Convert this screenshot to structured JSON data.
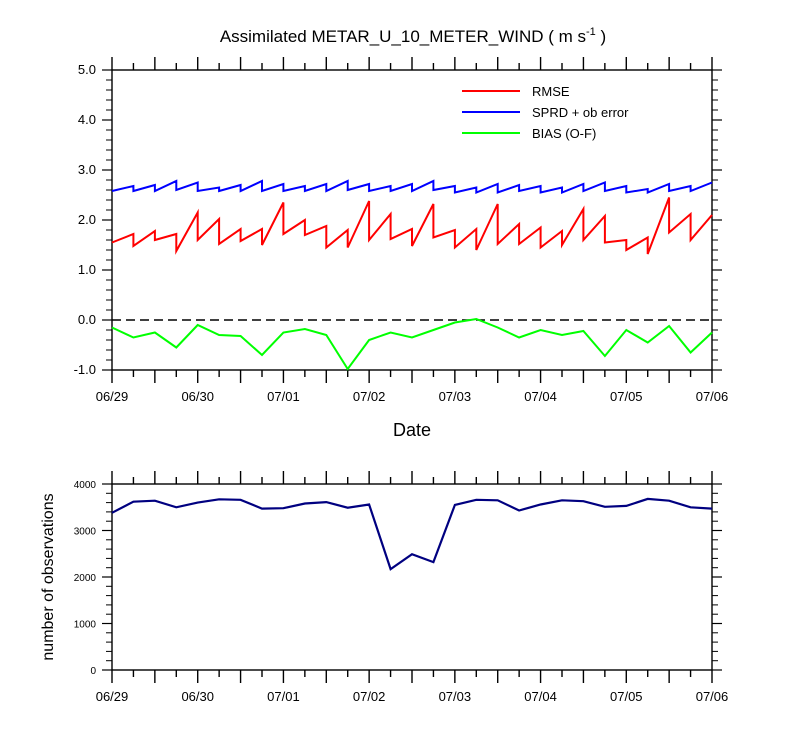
{
  "chart_data": [
    {
      "type": "line",
      "title": "Assimilated METAR_U_10_METER_WIND ( m s",
      "title_unit_exponent": "-1",
      "title_close": " )",
      "xlabel": "Date",
      "ylabel": "",
      "xlim": [
        "2012-06-29T00:00",
        "2012-07-06T00:00"
      ],
      "ylim": [
        -1.0,
        5.0
      ],
      "x_ticks": [
        "06/29",
        "06/30",
        "07/01",
        "07/02",
        "07/03",
        "07/04",
        "07/05",
        "07/06"
      ],
      "y_ticks": [
        "-1.0",
        "0.0",
        "1.0",
        "2.0",
        "3.0",
        "4.0",
        "5.0"
      ],
      "y_tick_values": [
        -1,
        0,
        1,
        2,
        3,
        4,
        5
      ],
      "zero_reference_line": true,
      "legend_position": "top-right",
      "grid": false,
      "series": [
        {
          "name": "RMSE",
          "color": "#ff0000",
          "x": [
            "2012-06-29T00:00",
            "2012-06-29T06:00",
            "2012-06-29T06:00",
            "2012-06-29T12:00",
            "2012-06-29T12:00",
            "2012-06-29T18:00",
            "2012-06-29T18:00",
            "2012-06-30T00:00",
            "2012-06-30T00:00",
            "2012-06-30T06:00",
            "2012-06-30T06:00",
            "2012-06-30T12:00",
            "2012-06-30T12:00",
            "2012-06-30T18:00",
            "2012-06-30T18:00",
            "2012-07-01T00:00",
            "2012-07-01T00:00",
            "2012-07-01T06:00",
            "2012-07-01T06:00",
            "2012-07-01T12:00",
            "2012-07-01T12:00",
            "2012-07-01T18:00",
            "2012-07-01T18:00",
            "2012-07-02T00:00",
            "2012-07-02T00:00",
            "2012-07-02T06:00",
            "2012-07-02T06:00",
            "2012-07-02T12:00",
            "2012-07-02T12:00",
            "2012-07-02T18:00",
            "2012-07-02T18:00",
            "2012-07-03T00:00",
            "2012-07-03T00:00",
            "2012-07-03T06:00",
            "2012-07-03T06:00",
            "2012-07-03T12:00",
            "2012-07-03T12:00",
            "2012-07-03T18:00",
            "2012-07-03T18:00",
            "2012-07-04T00:00",
            "2012-07-04T00:00",
            "2012-07-04T06:00",
            "2012-07-04T06:00",
            "2012-07-04T12:00",
            "2012-07-04T12:00",
            "2012-07-04T18:00",
            "2012-07-04T18:00",
            "2012-07-05T00:00",
            "2012-07-05T00:00",
            "2012-07-05T06:00",
            "2012-07-05T06:00",
            "2012-07-05T12:00",
            "2012-07-05T12:00",
            "2012-07-05T18:00",
            "2012-07-05T18:00",
            "2012-07-06T00:00"
          ],
          "values": [
            1.55,
            1.72,
            1.48,
            1.78,
            1.6,
            1.72,
            1.38,
            2.15,
            1.6,
            2.02,
            1.52,
            1.82,
            1.58,
            1.82,
            1.5,
            2.35,
            1.72,
            2.0,
            1.7,
            1.88,
            1.45,
            1.8,
            1.45,
            2.38,
            1.6,
            2.12,
            1.62,
            1.82,
            1.48,
            2.32,
            1.65,
            1.8,
            1.45,
            1.82,
            1.4,
            2.32,
            1.52,
            1.92,
            1.52,
            1.85,
            1.45,
            1.78,
            1.5,
            2.22,
            1.6,
            2.08,
            1.55,
            1.6,
            1.4,
            1.65,
            1.32,
            2.45,
            1.75,
            2.12,
            1.6,
            2.1
          ]
        },
        {
          "name": "SPRD + ob error",
          "color": "#0000ff",
          "x": [
            "2012-06-29T00:00",
            "2012-06-29T06:00",
            "2012-06-29T06:00",
            "2012-06-29T12:00",
            "2012-06-29T12:00",
            "2012-06-29T18:00",
            "2012-06-29T18:00",
            "2012-06-30T00:00",
            "2012-06-30T00:00",
            "2012-06-30T06:00",
            "2012-06-30T06:00",
            "2012-06-30T12:00",
            "2012-06-30T12:00",
            "2012-06-30T18:00",
            "2012-06-30T18:00",
            "2012-07-01T00:00",
            "2012-07-01T00:00",
            "2012-07-01T06:00",
            "2012-07-01T06:00",
            "2012-07-01T12:00",
            "2012-07-01T12:00",
            "2012-07-01T18:00",
            "2012-07-01T18:00",
            "2012-07-02T00:00",
            "2012-07-02T00:00",
            "2012-07-02T06:00",
            "2012-07-02T06:00",
            "2012-07-02T12:00",
            "2012-07-02T12:00",
            "2012-07-02T18:00",
            "2012-07-02T18:00",
            "2012-07-03T00:00",
            "2012-07-03T00:00",
            "2012-07-03T06:00",
            "2012-07-03T06:00",
            "2012-07-03T12:00",
            "2012-07-03T12:00",
            "2012-07-03T18:00",
            "2012-07-03T18:00",
            "2012-07-04T00:00",
            "2012-07-04T00:00",
            "2012-07-04T06:00",
            "2012-07-04T06:00",
            "2012-07-04T12:00",
            "2012-07-04T12:00",
            "2012-07-04T18:00",
            "2012-07-04T18:00",
            "2012-07-05T00:00",
            "2012-07-05T00:00",
            "2012-07-05T06:00",
            "2012-07-05T06:00",
            "2012-07-05T12:00",
            "2012-07-05T12:00",
            "2012-07-05T18:00",
            "2012-07-05T18:00",
            "2012-07-06T00:00"
          ],
          "values": [
            2.58,
            2.68,
            2.58,
            2.7,
            2.58,
            2.78,
            2.6,
            2.75,
            2.58,
            2.65,
            2.58,
            2.7,
            2.58,
            2.78,
            2.58,
            2.72,
            2.58,
            2.68,
            2.58,
            2.72,
            2.58,
            2.78,
            2.6,
            2.72,
            2.58,
            2.68,
            2.58,
            2.72,
            2.58,
            2.78,
            2.6,
            2.68,
            2.55,
            2.65,
            2.55,
            2.72,
            2.55,
            2.7,
            2.58,
            2.68,
            2.55,
            2.65,
            2.55,
            2.72,
            2.58,
            2.75,
            2.58,
            2.68,
            2.55,
            2.62,
            2.55,
            2.72,
            2.58,
            2.68,
            2.58,
            2.75
          ]
        },
        {
          "name": "BIAS (O-F)",
          "color": "#00ff00",
          "x": [
            "2012-06-29T00:00",
            "2012-06-29T06:00",
            "2012-06-29T12:00",
            "2012-06-29T18:00",
            "2012-06-30T00:00",
            "2012-06-30T06:00",
            "2012-06-30T12:00",
            "2012-06-30T18:00",
            "2012-07-01T00:00",
            "2012-07-01T06:00",
            "2012-07-01T12:00",
            "2012-07-01T18:00",
            "2012-07-02T00:00",
            "2012-07-02T06:00",
            "2012-07-02T12:00",
            "2012-07-02T18:00",
            "2012-07-03T00:00",
            "2012-07-03T06:00",
            "2012-07-03T12:00",
            "2012-07-03T18:00",
            "2012-07-04T00:00",
            "2012-07-04T06:00",
            "2012-07-04T12:00",
            "2012-07-04T18:00",
            "2012-07-05T00:00",
            "2012-07-05T06:00",
            "2012-07-05T12:00",
            "2012-07-05T18:00",
            "2012-07-06T00:00"
          ],
          "values": [
            -0.15,
            -0.35,
            -0.25,
            -0.55,
            -0.1,
            -0.3,
            -0.32,
            -0.7,
            -0.25,
            -0.18,
            -0.3,
            -0.98,
            -0.4,
            -0.25,
            -0.35,
            -0.2,
            -0.05,
            0.02,
            -0.15,
            -0.35,
            -0.2,
            -0.3,
            -0.22,
            -0.72,
            -0.2,
            -0.45,
            -0.12,
            -0.65,
            -0.25
          ]
        }
      ]
    },
    {
      "type": "line",
      "title": "",
      "xlabel": "",
      "ylabel": "number of observations",
      "xlim": [
        "2012-06-29T00:00",
        "2012-07-06T00:00"
      ],
      "ylim": [
        0,
        4000
      ],
      "x_ticks": [
        "06/29",
        "06/30",
        "07/01",
        "07/02",
        "07/03",
        "07/04",
        "07/05",
        "07/06"
      ],
      "y_ticks": [
        "0",
        "1000",
        "2000",
        "3000",
        "4000"
      ],
      "y_tick_values": [
        0,
        1000,
        2000,
        3000,
        4000
      ],
      "grid": false,
      "series": [
        {
          "color": "#000080",
          "x": [
            "2012-06-29T00:00",
            "2012-06-29T06:00",
            "2012-06-29T12:00",
            "2012-06-29T18:00",
            "2012-06-30T00:00",
            "2012-06-30T06:00",
            "2012-06-30T12:00",
            "2012-06-30T18:00",
            "2012-07-01T00:00",
            "2012-07-01T06:00",
            "2012-07-01T12:00",
            "2012-07-01T18:00",
            "2012-07-02T00:00",
            "2012-07-02T06:00",
            "2012-07-02T12:00",
            "2012-07-02T18:00",
            "2012-07-03T00:00",
            "2012-07-03T06:00",
            "2012-07-03T12:00",
            "2012-07-03T18:00",
            "2012-07-04T00:00",
            "2012-07-04T06:00",
            "2012-07-04T12:00",
            "2012-07-04T18:00",
            "2012-07-05T00:00",
            "2012-07-05T06:00",
            "2012-07-05T12:00",
            "2012-07-05T18:00",
            "2012-07-06T00:00"
          ],
          "values": [
            3380,
            3620,
            3640,
            3500,
            3600,
            3670,
            3660,
            3470,
            3480,
            3580,
            3610,
            3490,
            3560,
            2170,
            2490,
            2320,
            3550,
            3660,
            3650,
            3430,
            3560,
            3650,
            3630,
            3510,
            3530,
            3680,
            3640,
            3500,
            3470
          ]
        }
      ]
    }
  ]
}
